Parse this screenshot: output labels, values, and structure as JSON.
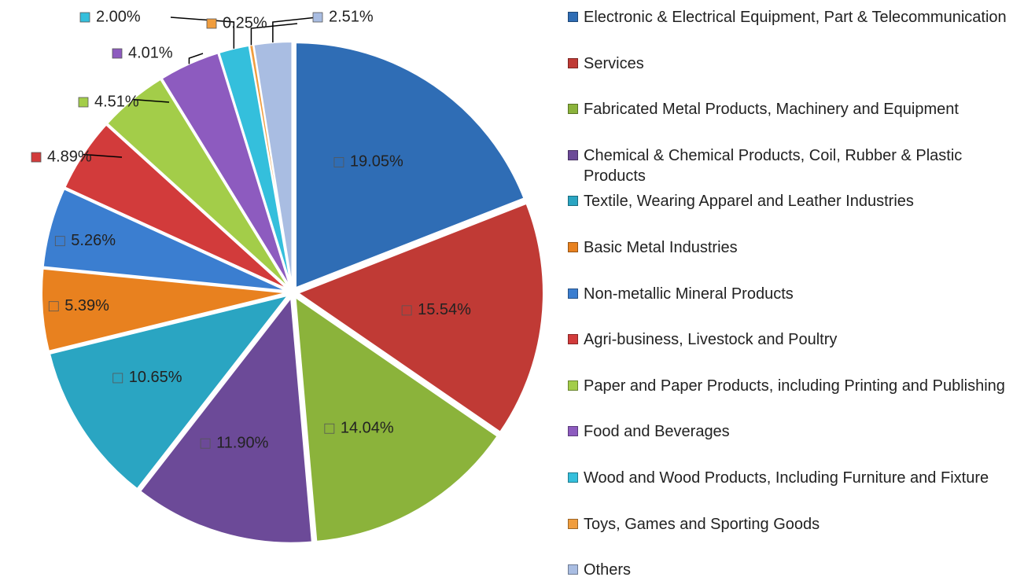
{
  "chart_data": {
    "type": "pie",
    "categories": [
      "Electronic & Electrical Equipment, Part & Telecommunication",
      "Services",
      "Fabricated Metal Products, Machinery and Equipment",
      "Chemical & Chemical Products, Coil, Rubber & Plastic Products",
      "Textile, Wearing Apparel and Leather  Industries",
      "Basic Metal Industries",
      "Non-metallic Mineral Products",
      "Agri-business, Livestock and Poultry",
      "Paper and Paper Products, including Printing and Publishing",
      "Food and Beverages",
      "Wood and Wood Products, Including Furniture and Fixture",
      "Toys, Games and Sporting Goods",
      "Others"
    ],
    "values": [
      19.05,
      15.54,
      14.04,
      11.9,
      10.65,
      5.39,
      5.26,
      4.89,
      4.51,
      4.01,
      2.0,
      0.25,
      2.51
    ],
    "value_labels": [
      "19.05%",
      "15.54%",
      "14.04%",
      "11.90%",
      "10.65%",
      "5.39%",
      "5.26%",
      "4.89%",
      "4.51%",
      "4.01%",
      "2.00%",
      "0.25%",
      "2.51%"
    ],
    "colors": [
      "#2f6db5",
      "#c03a35",
      "#8bb33b",
      "#6c4a98",
      "#2aa5c2",
      "#e8811f",
      "#3b7ed0",
      "#d23b3b",
      "#a3cd49",
      "#8d5bbf",
      "#34bfdc",
      "#f09d3e",
      "#a9bde2"
    ],
    "legend": "right"
  }
}
